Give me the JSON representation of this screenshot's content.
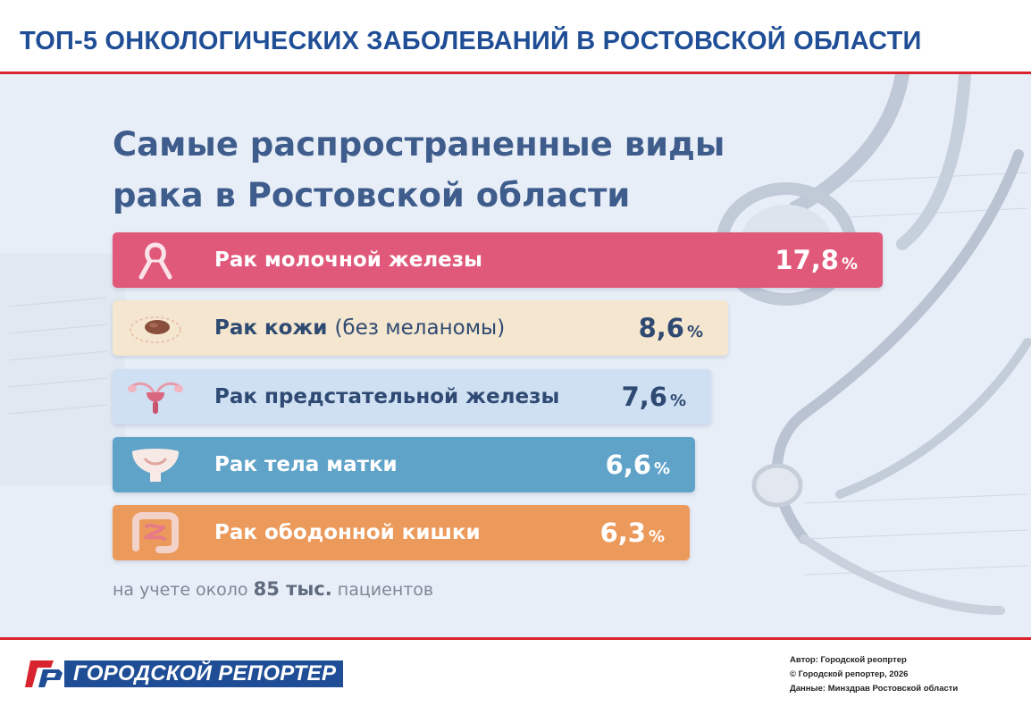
{
  "header": {
    "title": "ТОП-5 ОНКОЛОГИЧЕСКИХ ЗАБОЛЕВАНИЙ В РОСТОВСКОЙ ОБЛАСТИ"
  },
  "poster": {
    "title_line1": "Самые распространенные виды",
    "title_line2": "рака в Ростовской области",
    "footnote_prefix": "на учете около",
    "footnote_number": "85 тыс.",
    "footnote_suffix": "пациентов"
  },
  "chart_data": {
    "type": "bar",
    "orientation": "horizontal",
    "title": "Самые распространенные виды рака в Ростовской области",
    "unit": "%",
    "categories": [
      "Рак молочной железы",
      "Рак кожи (без меланомы)",
      "Рак предстательной железы",
      "Рак тела матки",
      "Рак ободонной кишки"
    ],
    "values": [
      17.8,
      8.6,
      7.6,
      6.6,
      6.3
    ],
    "bars": [
      {
        "label": "Рак молочной железы",
        "label_extra": "",
        "value": 17.8,
        "value_text": "17,8",
        "color": "#e0587a",
        "text_color": "#ffffff",
        "icon": "ribbon-icon"
      },
      {
        "label": "Рак кожи",
        "label_extra": "(без меланомы)",
        "value": 8.6,
        "value_text": "8,6",
        "color": "#f4e6cf",
        "text_color": "#2f4a72",
        "icon": "mole-icon"
      },
      {
        "label": "Рак предстательной железы",
        "label_extra": "",
        "value": 7.6,
        "value_text": "7,6",
        "color": "#cfe0f3",
        "text_color": "#2f4a72",
        "icon": "prostate-icon"
      },
      {
        "label": "Рак тела матки",
        "label_extra": "",
        "value": 6.6,
        "value_text": "6,6",
        "color": "#5fa3c9",
        "text_color": "#ffffff",
        "icon": "uterus-icon"
      },
      {
        "label": "Рак ободонной кишки",
        "label_extra": "",
        "value": 6.3,
        "value_text": "6,3",
        "color": "#ec9a5b",
        "text_color": "#ffffff",
        "icon": "colon-icon"
      }
    ],
    "legend": false,
    "grid": false
  },
  "logo": {
    "text": "ГОРОДСКОЙ РЕПОРТЕР",
    "colors": {
      "blue": "#1f4e96",
      "red": "#d9232e"
    }
  },
  "credits": {
    "author": "Автор: Городской реопртер",
    "copyright": "© Городской репортер, 2026",
    "source": "Данные: Минздрав Ростовской области"
  },
  "colors": {
    "accent_blue": "#1f4e96",
    "rule_red": "#d9232e",
    "poster_title": "#3f5d8c"
  }
}
